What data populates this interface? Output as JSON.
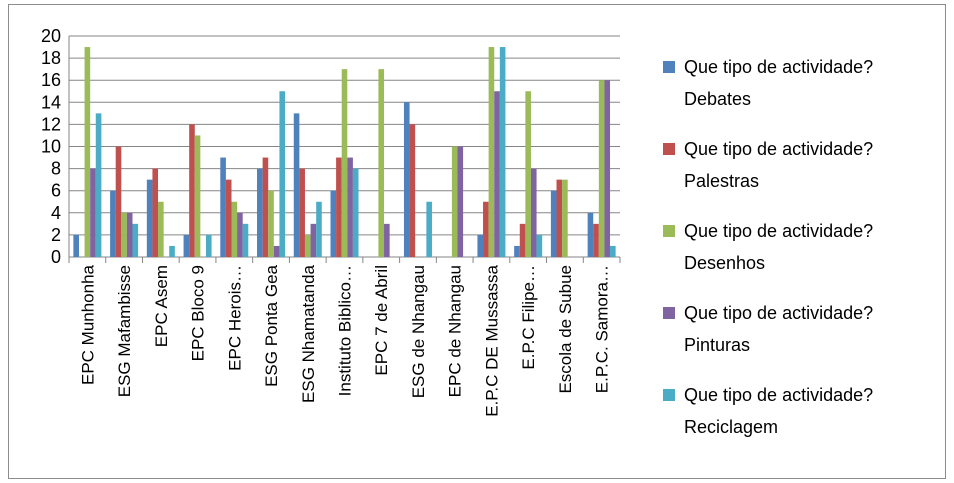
{
  "chart_data": {
    "type": "bar",
    "categories": [
      "EPC Munhonha",
      "ESG Mafambisse",
      "EPC Asem",
      "EPC Bloco 9",
      "EPC Herois…",
      "ESG Ponta Gea",
      "ESG Nhamatanda",
      "Instituto Biblico…",
      "EPC 7 de Abril",
      "ESG de Nhangau",
      "EPC de Nhangau",
      "E.P.C DE Mussassa",
      "E.P.C Filipe…",
      "Escola de Subue",
      "E.P.C. Samora…"
    ],
    "series": [
      {
        "name": "Que tipo de actividade? Debates",
        "color": "#4f81bd",
        "values": [
          2,
          6,
          7,
          2,
          9,
          8,
          13,
          6,
          0,
          14,
          0,
          2,
          1,
          6,
          4
        ]
      },
      {
        "name": "Que tipo de actividade? Palestras",
        "color": "#c0504d",
        "values": [
          0,
          10,
          8,
          12,
          7,
          9,
          8,
          9,
          0,
          12,
          0,
          5,
          3,
          7,
          3
        ]
      },
      {
        "name": "Que tipo de actividade? Desenhos",
        "color": "#9bbb59",
        "values": [
          19,
          4,
          5,
          11,
          5,
          6,
          2,
          17,
          17,
          0,
          10,
          19,
          15,
          7,
          16
        ]
      },
      {
        "name": "Que tipo de actividade? Pinturas",
        "color": "#8064a2",
        "values": [
          8,
          4,
          0,
          0,
          4,
          1,
          3,
          9,
          3,
          0,
          10,
          15,
          8,
          0,
          16
        ]
      },
      {
        "name": "Que tipo de actividade? Reciclagem",
        "color": "#4bacc6",
        "values": [
          13,
          3,
          1,
          2,
          3,
          15,
          5,
          8,
          0,
          5,
          0,
          19,
          2,
          0,
          1
        ]
      }
    ],
    "y_ticks": [
      "0",
      "2",
      "4",
      "6",
      "8",
      "10",
      "12",
      "14",
      "16",
      "18",
      "20"
    ],
    "ylim": [
      0,
      20
    ],
    "grid": true,
    "legend": {
      "placement": "right",
      "entries": [
        {
          "line1": "Que tipo de actividade?",
          "line2": "Debates"
        },
        {
          "line1": "Que tipo de actividade?",
          "line2": "Palestras"
        },
        {
          "line1": "Que tipo de actividade?",
          "line2": "Desenhos"
        },
        {
          "line1": "Que tipo de actividade?",
          "line2": "Pinturas"
        },
        {
          "line1": "Que tipo de actividade?",
          "line2": "Reciclagem"
        }
      ]
    }
  }
}
